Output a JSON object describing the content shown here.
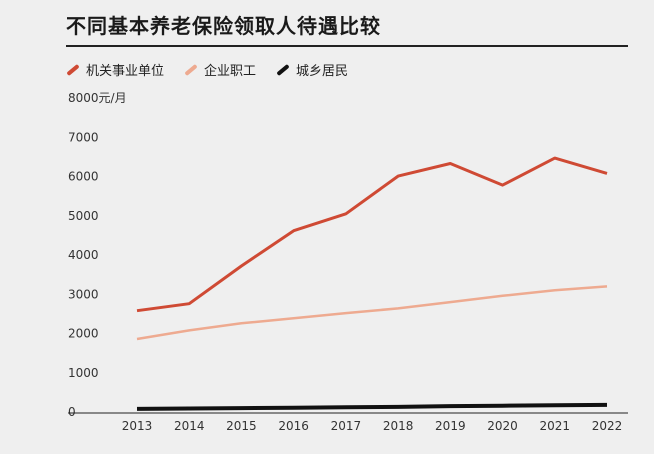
{
  "title": "不同基本养老保险领取人待遇比较",
  "legend": [
    {
      "label": "机关事业单位",
      "color": "#cf4a34"
    },
    {
      "label": "企业职工",
      "color": "#eeaa90"
    },
    {
      "label": "城乡居民",
      "color": "#111111"
    }
  ],
  "chart_data": {
    "type": "line",
    "title": "不同基本养老保险领取人待遇比较",
    "ylabel": "元/月",
    "x": [
      "2013",
      "2014",
      "2015",
      "2016",
      "2017",
      "2018",
      "2019",
      "2020",
      "2021",
      "2022"
    ],
    "yticks": [
      "0",
      "1000",
      "2000",
      "3000",
      "4000",
      "5000",
      "6000",
      "7000",
      "8000"
    ],
    "ylim": [
      0,
      8000
    ],
    "grid": false,
    "legend_position": "top-left",
    "series": [
      {
        "name": "机关事业单位",
        "color": "#cf4a34",
        "values": [
          2580,
          2760,
          3720,
          4620,
          5050,
          6010,
          6330,
          5780,
          6470,
          6080
        ]
      },
      {
        "name": "企业职工",
        "color": "#eeaa90",
        "values": [
          1860,
          2080,
          2260,
          2390,
          2520,
          2640,
          2800,
          2960,
          3100,
          3200
        ]
      },
      {
        "name": "城乡居民",
        "color": "#111111",
        "values": [
          80,
          90,
          100,
          110,
          120,
          130,
          150,
          160,
          170,
          180
        ]
      }
    ]
  }
}
